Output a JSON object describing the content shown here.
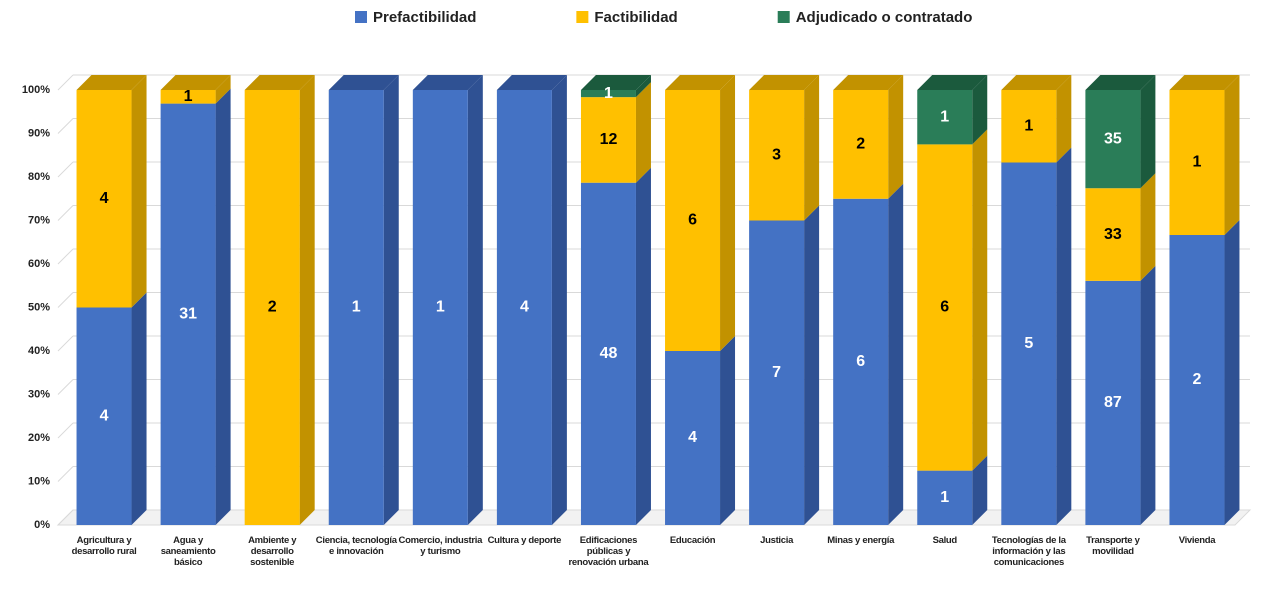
{
  "chart_data": {
    "type": "bar",
    "stacked": "percent",
    "categories": [
      "Agricultura y desarrollo rural",
      "Agua y saneamiento básico",
      "Ambiente y desarrollo sostenible",
      "Ciencia, tecnología e innovación",
      "Comercio, industria y turismo",
      "Cultura y deporte",
      "Edificaciones públicas y renovación urbana",
      "Educación",
      "Justicia",
      "Minas y energía",
      "Salud",
      "Tecnologías de la información y las comunicaciones",
      "Transporte y movilidad",
      "Vivienda"
    ],
    "series": [
      {
        "name": "Prefactibilidad",
        "color": "#4472c4",
        "side": "#2f5193",
        "label_color": "#ffffff",
        "values": [
          4,
          31,
          null,
          1,
          1,
          4,
          48,
          4,
          7,
          6,
          1,
          5,
          87,
          2
        ]
      },
      {
        "name": "Factibilidad",
        "color": "#ffc000",
        "side": "#c29200",
        "label_color": "#000000",
        "values": [
          4,
          1,
          2,
          null,
          null,
          null,
          12,
          6,
          3,
          2,
          6,
          1,
          33,
          1
        ]
      },
      {
        "name": "Adjudicado o contratado",
        "color": "#2a7d58",
        "side": "#1b5a3d",
        "label_color": "#ffffff",
        "values": [
          null,
          null,
          null,
          null,
          null,
          null,
          1,
          null,
          null,
          null,
          1,
          null,
          35,
          null
        ]
      }
    ],
    "ylim": [
      0,
      100
    ],
    "yticks": [
      {
        "value": 0,
        "label": "0%"
      },
      {
        "value": 10,
        "label": "10%"
      },
      {
        "value": 20,
        "label": "20%"
      },
      {
        "value": 30,
        "label": "30%"
      },
      {
        "value": 40,
        "label": "40%"
      },
      {
        "value": 50,
        "label": "50%"
      },
      {
        "value": 60,
        "label": "60%"
      },
      {
        "value": 70,
        "label": "70%"
      },
      {
        "value": 80,
        "label": "80%"
      },
      {
        "value": 90,
        "label": "90%"
      },
      {
        "value": 100,
        "label": "100%"
      }
    ],
    "grid": true,
    "legend": "top"
  }
}
